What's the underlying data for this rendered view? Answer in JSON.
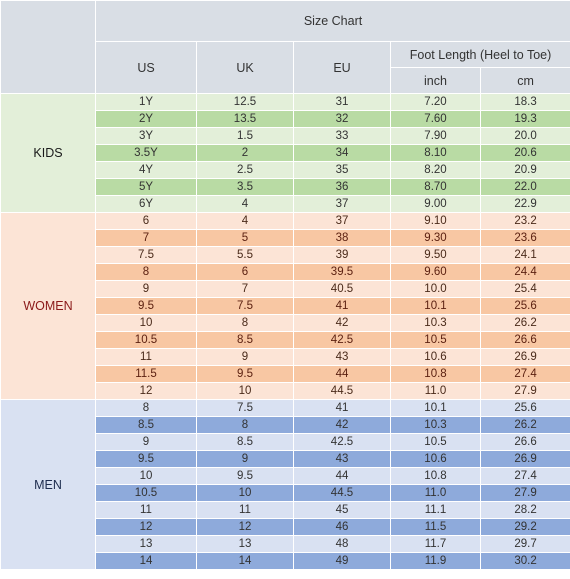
{
  "title": "Size Chart",
  "columns": {
    "us": "US",
    "uk": "UK",
    "eu": "EU",
    "foot_length": "Foot Length (Heel to Toe)",
    "inch": "inch",
    "cm": "cm"
  },
  "groups": [
    {
      "label": "KIDS",
      "key": "kids",
      "rows": [
        [
          "1Y",
          "12.5",
          "31",
          "7.20",
          "18.3"
        ],
        [
          "2Y",
          "13.5",
          "32",
          "7.60",
          "19.3"
        ],
        [
          "3Y",
          "1.5",
          "33",
          "7.90",
          "20.0"
        ],
        [
          "3.5Y",
          "2",
          "34",
          "8.10",
          "20.6"
        ],
        [
          "4Y",
          "2.5",
          "35",
          "8.20",
          "20.9"
        ],
        [
          "5Y",
          "3.5",
          "36",
          "8.70",
          "22.0"
        ],
        [
          "6Y",
          "4",
          "37",
          "9.00",
          "22.9"
        ]
      ]
    },
    {
      "label": "WOMEN",
      "key": "women",
      "rows": [
        [
          "6",
          "4",
          "37",
          "9.10",
          "23.2"
        ],
        [
          "7",
          "5",
          "38",
          "9.30",
          "23.6"
        ],
        [
          "7.5",
          "5.5",
          "39",
          "9.50",
          "24.1"
        ],
        [
          "8",
          "6",
          "39.5",
          "9.60",
          "24.4"
        ],
        [
          "9",
          "7",
          "40.5",
          "10.0",
          "25.4"
        ],
        [
          "9.5",
          "7.5",
          "41",
          "10.1",
          "25.6"
        ],
        [
          "10",
          "8",
          "42",
          "10.3",
          "26.2"
        ],
        [
          "10.5",
          "8.5",
          "42.5",
          "10.5",
          "26.6"
        ],
        [
          "11",
          "9",
          "43",
          "10.6",
          "26.9"
        ],
        [
          "11.5",
          "9.5",
          "44",
          "10.8",
          "27.4"
        ],
        [
          "12",
          "10",
          "44.5",
          "11.0",
          "27.9"
        ]
      ]
    },
    {
      "label": "MEN",
      "key": "men",
      "rows": [
        [
          "8",
          "7.5",
          "41",
          "10.1",
          "25.6"
        ],
        [
          "8.5",
          "8",
          "42",
          "10.3",
          "26.2"
        ],
        [
          "9",
          "8.5",
          "42.5",
          "10.5",
          "26.6"
        ],
        [
          "9.5",
          "9",
          "43",
          "10.6",
          "26.9"
        ],
        [
          "10",
          "9.5",
          "44",
          "10.8",
          "27.4"
        ],
        [
          "10.5",
          "10",
          "44.5",
          "11.0",
          "27.9"
        ],
        [
          "11",
          "11",
          "45",
          "11.1",
          "28.2"
        ],
        [
          "12",
          "12",
          "46",
          "11.5",
          "29.2"
        ],
        [
          "13",
          "13",
          "48",
          "11.7",
          "29.7"
        ],
        [
          "14",
          "14",
          "49",
          "11.9",
          "30.2"
        ]
      ]
    }
  ]
}
